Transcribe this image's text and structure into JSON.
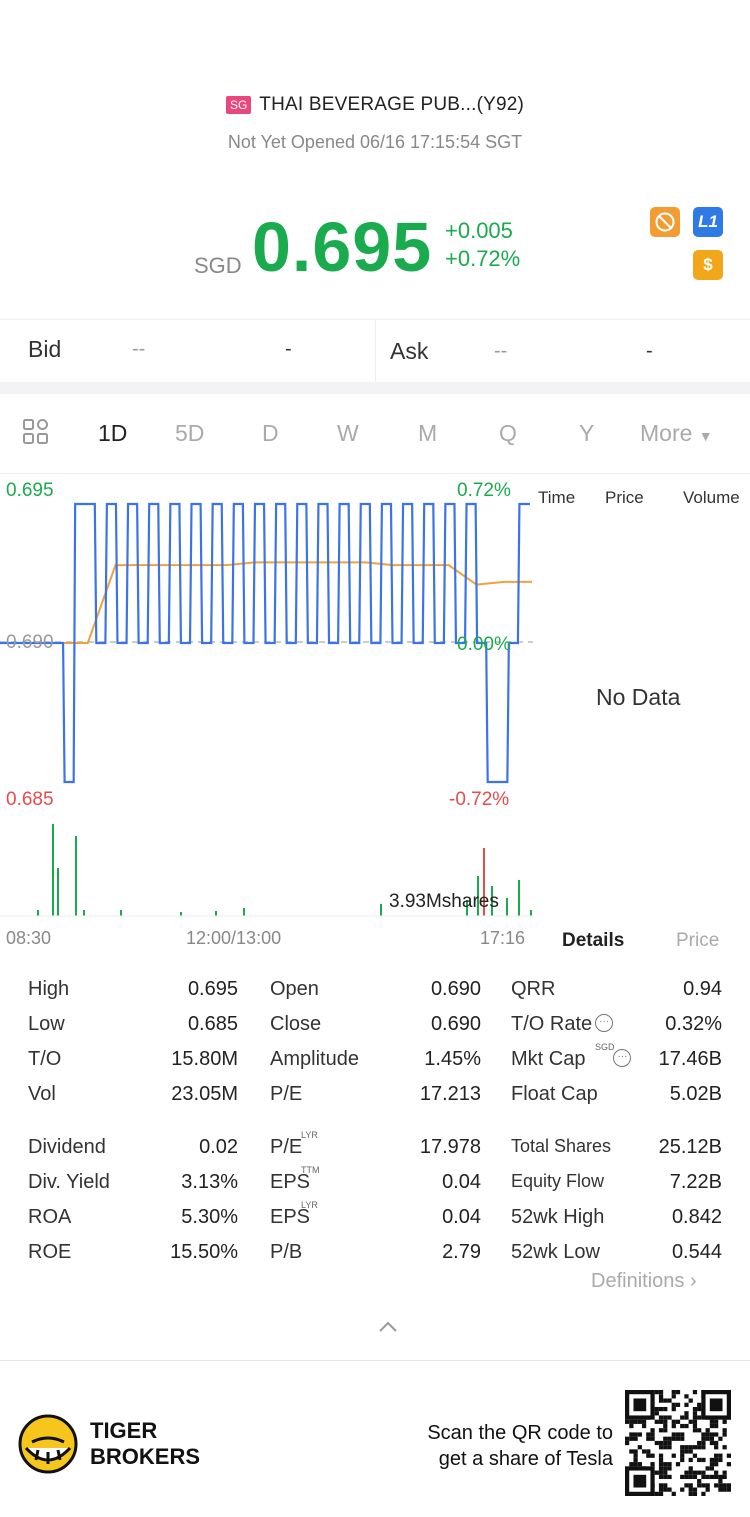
{
  "header": {
    "market_badge": "SG",
    "title": "THAI BEVERAGE PUB...(Y92)",
    "status": "Not Yet Opened 06/16 17:15:54 SGT"
  },
  "quote": {
    "currency": "SGD",
    "price": "0.695",
    "change": "+0.005",
    "change_pct": "+0.72%",
    "price_color": "#1aab4e",
    "badges": [
      {
        "icon": "no-margin-icon",
        "color": "#f39c31"
      },
      {
        "icon": "level1-icon",
        "label": "L1",
        "color": "#2f7be5"
      },
      {
        "icon": "dollar-icon",
        "label": "$",
        "color": "#f2a71b"
      }
    ]
  },
  "bid_ask": {
    "bid_label": "Bid",
    "bid_price": "--",
    "bid_size": "-",
    "ask_label": "Ask",
    "ask_price": "--",
    "ask_size": "-"
  },
  "tabs": {
    "items": [
      "1D",
      "5D",
      "D",
      "W",
      "M",
      "Q",
      "Y"
    ],
    "more": "More",
    "active": "1D"
  },
  "chart": {
    "y_high": "0.695",
    "y_mid": "0.690",
    "y_low": "0.685",
    "pct_high": "0.72%",
    "pct_mid": "0.00%",
    "pct_low": "-0.72%",
    "volume_label": "3.93Mshares",
    "time_start": "08:30",
    "time_mid": "12:00/13:00",
    "time_end": "17:16",
    "price_color": "#3b74e8",
    "avg_color": "#f0a23a",
    "up_color": "#1aab4e",
    "down_color": "#e84b4b"
  },
  "chart_data": {
    "type": "line",
    "x_ticks": [
      "08:30",
      "12:00/13:00",
      "17:16"
    ],
    "ylim": [
      0.685,
      0.695
    ],
    "series": [
      {
        "values": [
          0.69,
          0.685,
          0.695,
          0.695,
          0.69,
          0.695,
          0.69,
          0.695,
          0.69,
          0.695,
          0.69,
          0.695,
          0.69,
          0.695,
          0.69,
          0.695,
          0.69,
          0.695,
          0.69,
          0.695,
          0.69,
          0.695,
          0.69,
          0.695,
          0.69,
          0.695,
          0.69,
          0.695,
          0.69,
          0.695,
          0.69,
          0.695,
          0.69,
          0.695,
          0.69,
          0.695,
          0.69,
          0.695,
          0.69,
          0.695,
          0.69,
          0.685,
          0.685,
          0.69,
          0.695,
          0.695
        ]
      },
      {
        "values": [
          0.69,
          0.69,
          0.6928,
          0.6928,
          0.6928,
          0.6928,
          0.6928,
          0.6929,
          0.6929,
          0.6929,
          0.6929,
          0.6929,
          0.6928,
          0.6928,
          0.6928,
          0.6921,
          0.6922,
          0.6922
        ]
      }
    ]
  },
  "side_panel": {
    "headers": [
      "Time",
      "Price",
      "Volume"
    ],
    "empty": "No Data",
    "tab_details": "Details",
    "tab_price": "Price"
  },
  "stats": {
    "col1": [
      {
        "label": "High",
        "value": "0.695"
      },
      {
        "label": "Low",
        "value": "0.685"
      },
      {
        "label": "T/O",
        "value": "15.80M"
      },
      {
        "label": "Vol",
        "value": "23.05M"
      },
      {
        "label": "Dividend",
        "value": "0.02"
      },
      {
        "label": "Div. Yield",
        "value": "3.13%"
      },
      {
        "label": "ROA",
        "value": "5.30%"
      },
      {
        "label": "ROE",
        "value": "15.50%"
      }
    ],
    "col2": [
      {
        "label": "Open",
        "value": "0.690",
        "sup": ""
      },
      {
        "label": "Close",
        "value": "0.690",
        "sup": ""
      },
      {
        "label": "Amplitude",
        "value": "1.45%",
        "sup": ""
      },
      {
        "label": "P/E",
        "value": "17.213",
        "sup": ""
      },
      {
        "label": "P/E",
        "value": "17.978",
        "sup": "LYR"
      },
      {
        "label": "EPS",
        "value": "0.04",
        "sup": "TTM"
      },
      {
        "label": "EPS",
        "value": "0.04",
        "sup": "LYR"
      },
      {
        "label": "P/B",
        "value": "2.79",
        "sup": ""
      }
    ],
    "col3": [
      {
        "label": "QRR",
        "value": "0.94",
        "sup": ""
      },
      {
        "label": "T/O Rate",
        "value": "0.32%",
        "sup": ""
      },
      {
        "label": "Mkt Cap",
        "value": "17.46B",
        "sup": "SGD"
      },
      {
        "label": "Float Cap",
        "value": "5.02B",
        "sup": ""
      },
      {
        "label": "Total Shares",
        "value": "25.12B",
        "sup": ""
      },
      {
        "label": "Equity Flow",
        "value": "7.22B",
        "sup": ""
      },
      {
        "label": "52wk High",
        "value": "0.842",
        "sup": ""
      },
      {
        "label": "52wk Low",
        "value": "0.544",
        "sup": ""
      }
    ],
    "definitions": "Definitions"
  },
  "footer": {
    "brand_line1": "TIGER",
    "brand_line2": "BROKERS",
    "promo_line1": "Scan the QR code to",
    "promo_line2": "get a share of Tesla"
  }
}
